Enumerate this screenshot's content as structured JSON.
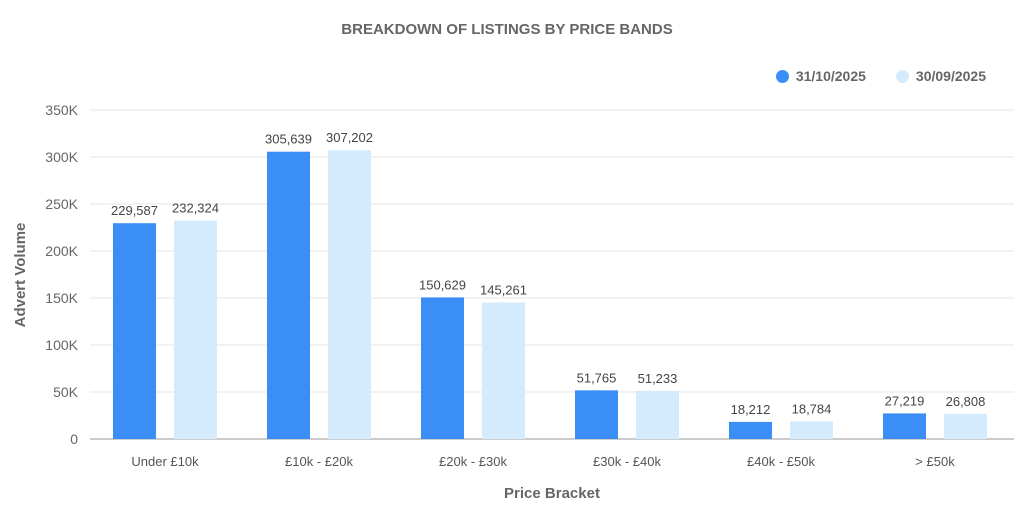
{
  "chart_data": {
    "type": "bar",
    "title": "BREAKDOWN OF LISTINGS BY PRICE BANDS",
    "xlabel": "Price Bracket",
    "ylabel": "Advert Volume",
    "categories": [
      "Under £10k",
      "£10k - £20k",
      "£20k - £30k",
      "£30k - £40k",
      "£40k - £50k",
      "> £50k"
    ],
    "series": [
      {
        "name": "31/10/2025",
        "color": "#3A8EF6",
        "values": [
          229587,
          305639,
          150629,
          51765,
          18212,
          27219
        ]
      },
      {
        "name": "30/09/2025",
        "color": "#D3EBFD",
        "values": [
          232324,
          307202,
          145261,
          51233,
          18784,
          26808
        ]
      }
    ],
    "ylim": [
      0,
      350000
    ],
    "yticks": [
      "0",
      "50K",
      "100K",
      "150K",
      "200K",
      "250K",
      "300K",
      "350K"
    ],
    "grid": true,
    "legend": "top-right"
  }
}
